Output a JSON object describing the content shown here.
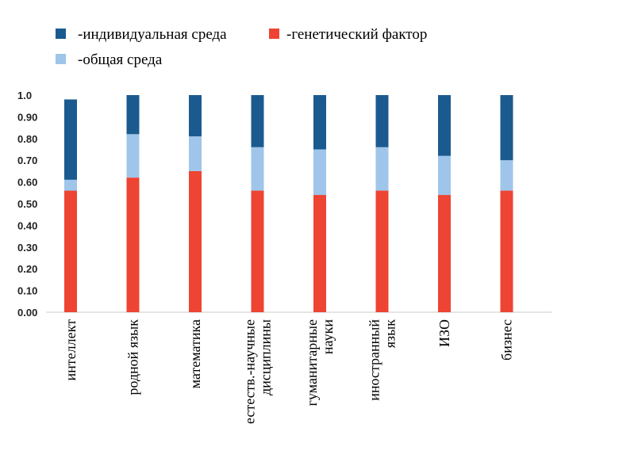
{
  "chart_data": {
    "type": "bar",
    "stacked": true,
    "categories": [
      [
        "интеллект"
      ],
      [
        "родной язык"
      ],
      [
        "математика"
      ],
      [
        "естеств.-научные",
        "дисциплины"
      ],
      [
        "гуманитарные",
        "науки"
      ],
      [
        "иностранный",
        "язык"
      ],
      [
        "ИЗО"
      ],
      [
        "бизнес"
      ]
    ],
    "series": [
      {
        "name": "-генетический фактор",
        "color": "#ee4433",
        "values": [
          0.56,
          0.62,
          0.65,
          0.56,
          0.54,
          0.56,
          0.54,
          0.56
        ]
      },
      {
        "name": "-общая среда",
        "color": "#9fc5ea",
        "values": [
          0.05,
          0.2,
          0.16,
          0.2,
          0.21,
          0.2,
          0.18,
          0.14
        ]
      },
      {
        "name": "-индивидуальная среда",
        "color": "#1b5a8f",
        "values": [
          0.37,
          0.18,
          0.19,
          0.24,
          0.25,
          0.24,
          0.28,
          0.3
        ]
      }
    ],
    "y_ticks": [
      "0.00",
      "0.10",
      "0.20",
      "0.30",
      "0.40",
      "0.50",
      "0.60",
      "0.70",
      "0.80",
      "0.90",
      "1.0"
    ],
    "ylim": [
      0,
      1.0
    ],
    "grid": false,
    "legend_position": "top"
  }
}
